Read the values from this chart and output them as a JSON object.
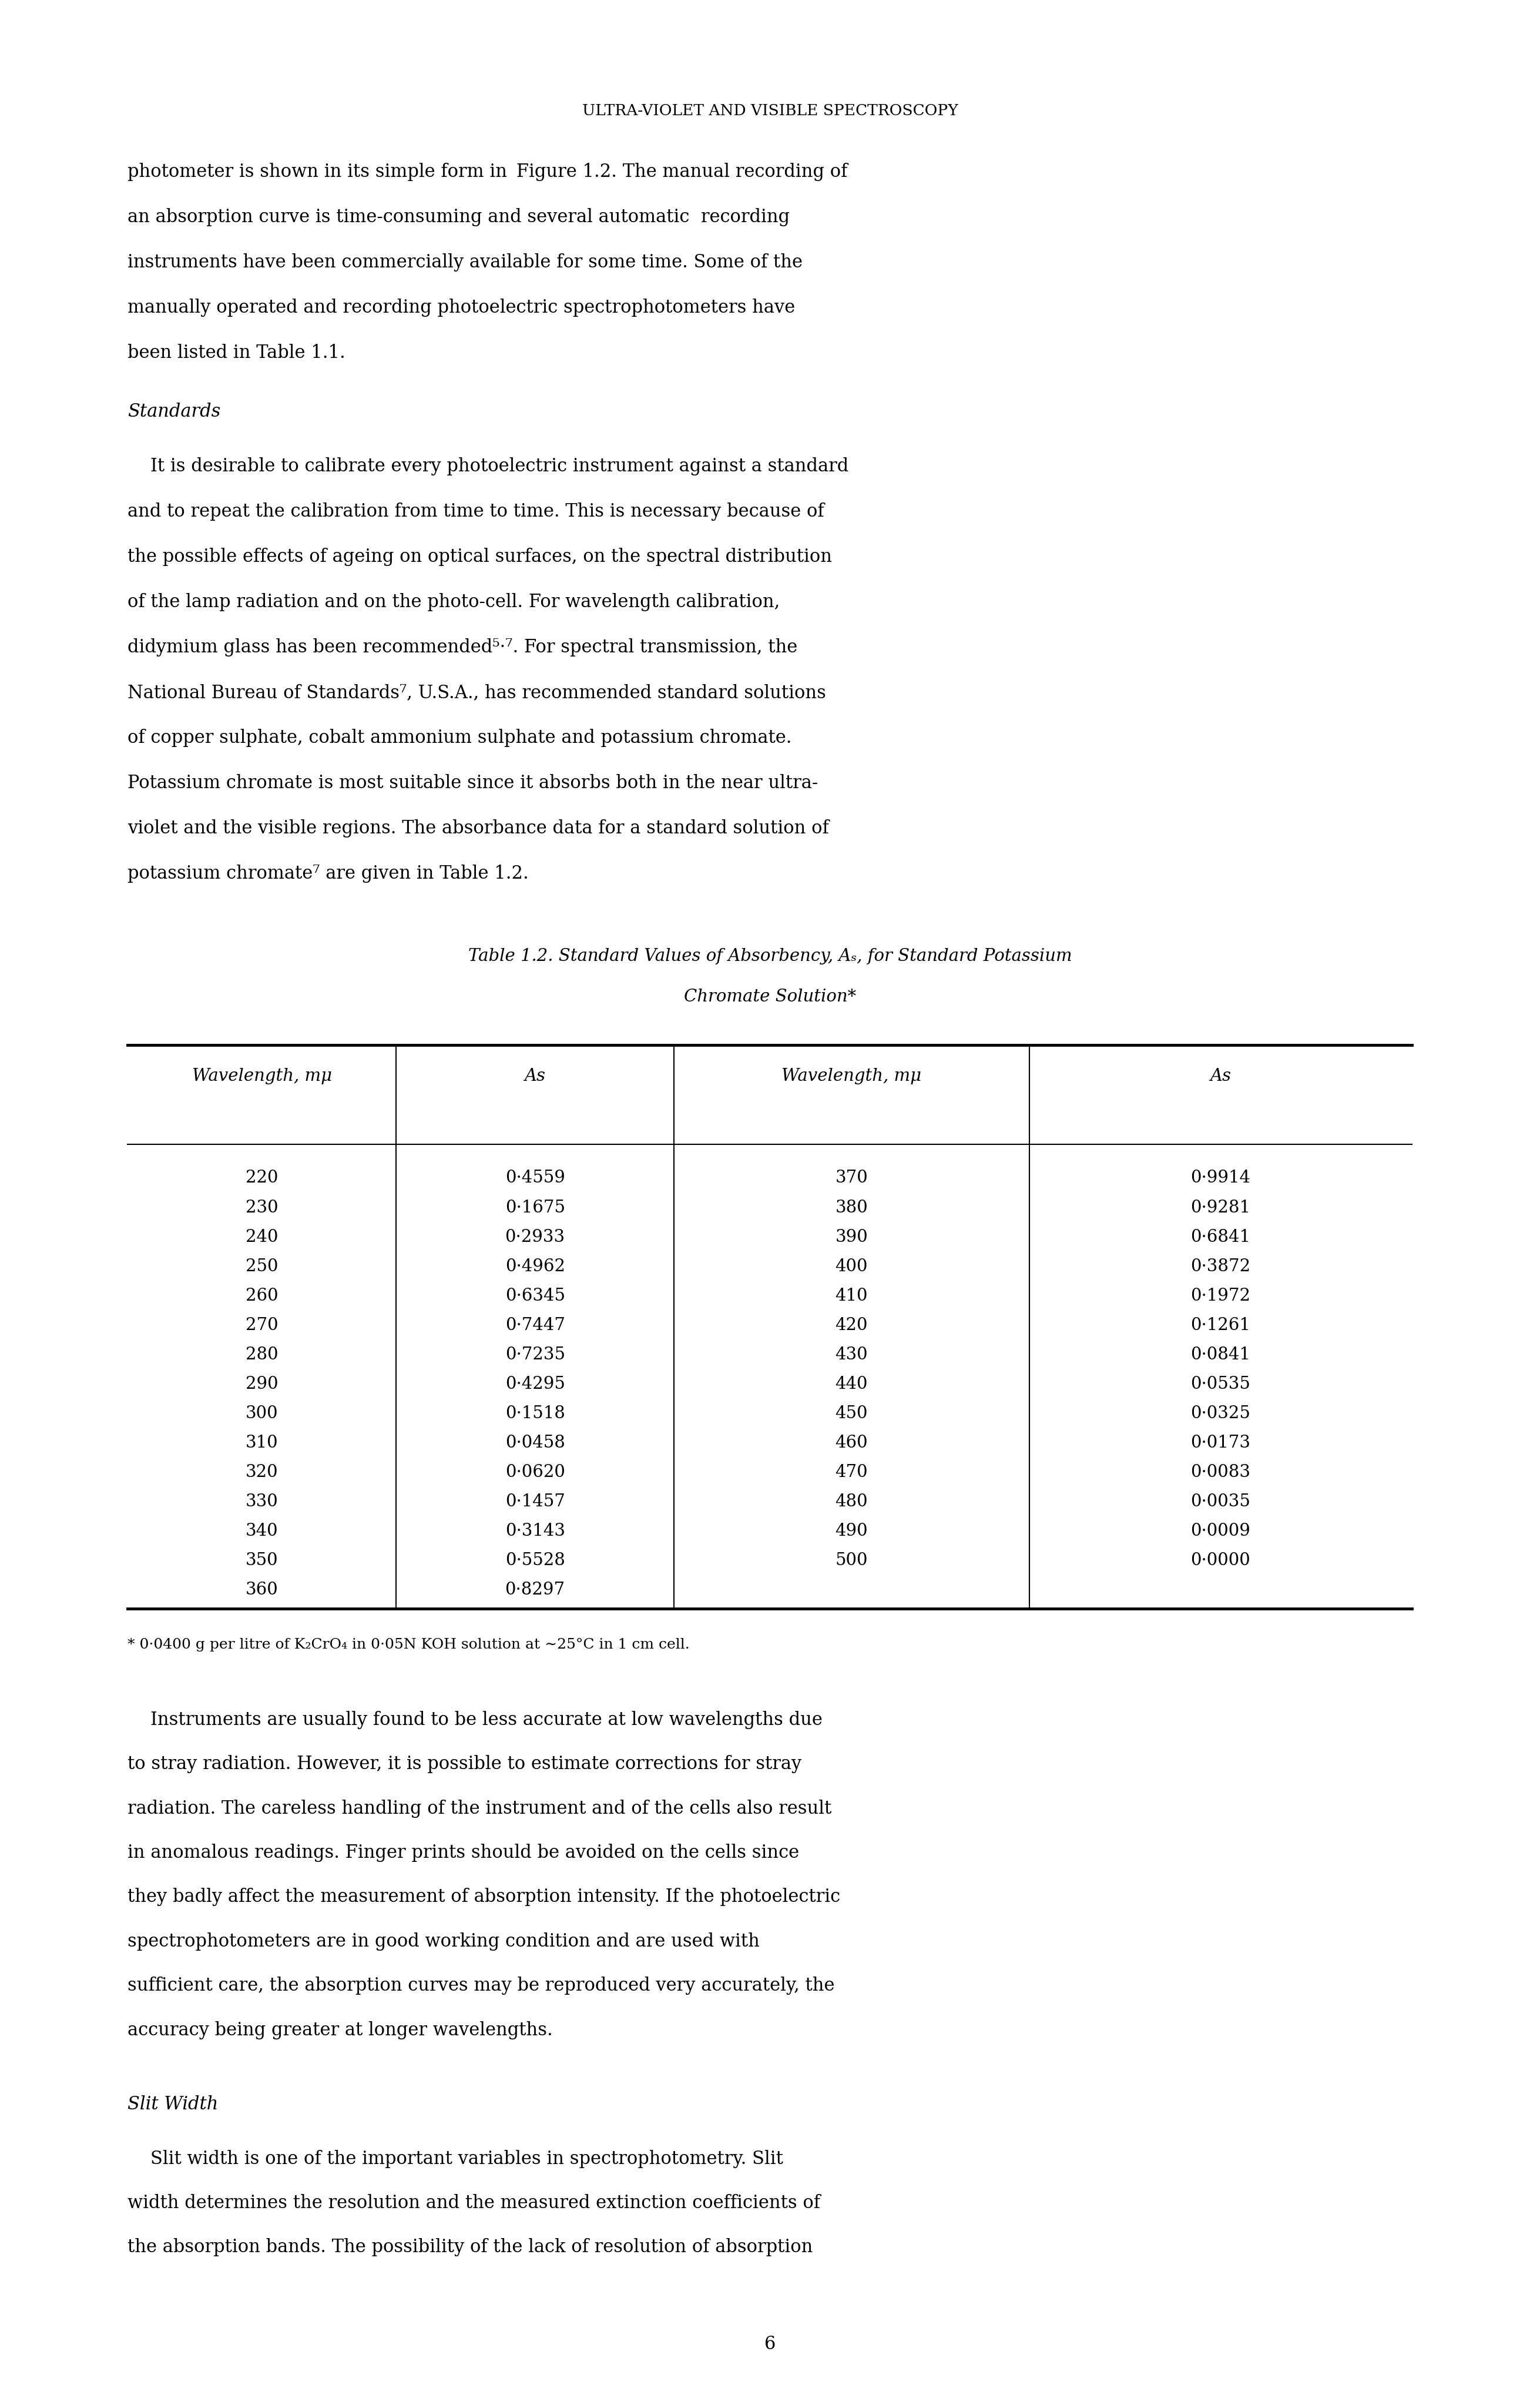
{
  "page_header": "ULTRA-VIOLET AND VISIBLE SPECTROSCOPY",
  "table_title_line1": "Table 1.2. Standard Values of Absorbency, As, for Standard Potassium",
  "table_title_line2": "Chromate Solution*",
  "col_headers": [
    "Wavelength, mμ",
    "As",
    "Wavelength, mμ",
    "As"
  ],
  "table_data_left": [
    [
      220,
      "0·4559"
    ],
    [
      230,
      "0·1675"
    ],
    [
      240,
      "0·2933"
    ],
    [
      250,
      "0·4962"
    ],
    [
      260,
      "0·6345"
    ],
    [
      270,
      "0·7447"
    ],
    [
      280,
      "0·7235"
    ],
    [
      290,
      "0·4295"
    ],
    [
      300,
      "0·1518"
    ],
    [
      310,
      "0·0458"
    ],
    [
      320,
      "0·0620"
    ],
    [
      330,
      "0·1457"
    ],
    [
      340,
      "0·3143"
    ],
    [
      350,
      "0·5528"
    ],
    [
      360,
      "0·8297"
    ]
  ],
  "table_data_right": [
    [
      370,
      "0·9914"
    ],
    [
      380,
      "0·9281"
    ],
    [
      390,
      "0·6841"
    ],
    [
      400,
      "0·3872"
    ],
    [
      410,
      "0·1972"
    ],
    [
      420,
      "0·1261"
    ],
    [
      430,
      "0·0841"
    ],
    [
      440,
      "0·0535"
    ],
    [
      450,
      "0·0325"
    ],
    [
      460,
      "0·0173"
    ],
    [
      470,
      "0·0083"
    ],
    [
      480,
      "0·0035"
    ],
    [
      490,
      "0·0009"
    ],
    [
      500,
      "0·0000"
    ]
  ],
  "footnote": "* 0·0400 g per litre of K₂CrO₄ in 0·05N KOH solution at ∼25°C in 1 cm cell.",
  "page_number": "6",
  "background_color": "#ffffff",
  "text_color": "#000000",
  "p1_lines": [
    "photometer is shown in its simple form in  Figure 1.2. The manual recording of",
    "an absorption curve is time-consuming and several automatic  recording",
    "instruments have been commercially available for some time. Some of the",
    "manually operated and recording photoelectric spectrophotometers have",
    "been listed in Table 1.1."
  ],
  "section_heading1": "Standards",
  "p2_lines": [
    "    It is desirable to calibrate every photoelectric instrument against a standard",
    "and to repeat the calibration from time to time. This is necessary because of",
    "the possible effects of ageing on optical surfaces, on the spectral distribution",
    "of the lamp radiation and on the photo-cell. For wavelength calibration,",
    "didymium glass has been recommended⁵·⁷. For spectral transmission, the",
    "National Bureau of Standards⁷, U.S.A., has recommended standard solutions",
    "of copper sulphate, cobalt ammonium sulphate and potassium chromate.",
    "Potassium chromate is most suitable since it absorbs both in the near ultra-",
    "violet and the visible regions. The absorbance data for a standard solution of",
    "potassium chromate⁷ are given in Table 1.2."
  ],
  "section_heading2": "Slit Width",
  "p3_lines": [
    "    Instruments are usually found to be less accurate at low wavelengths due",
    "to stray radiation. However, it is possible to estimate corrections for stray",
    "radiation. The careless handling of the instrument and of the cells also result",
    "in anomalous readings. Finger prints should be avoided on the cells since",
    "they badly affect the measurement of absorption intensity. If the photoelectric",
    "spectrophotometers are in good working condition and are used with",
    "sufficient care, the absorption curves may be reproduced very accurately, the",
    "accuracy being greater at longer wavelengths."
  ],
  "p4_lines": [
    "    Slit width is one of the important variables in spectrophotometry. Slit",
    "width determines the resolution and the measured extinction coefficients of",
    "the absorption bands. The possibility of the lack of resolution of absorption"
  ]
}
